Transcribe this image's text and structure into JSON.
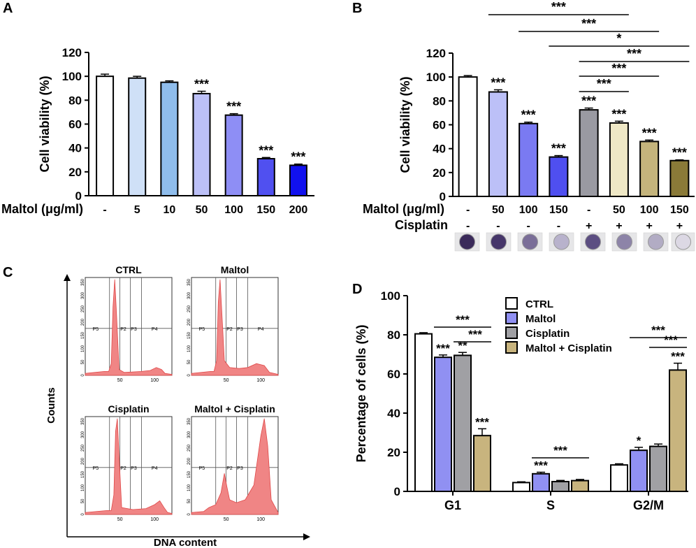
{
  "chart_data": [
    {
      "panel": "A",
      "type": "bar",
      "ylabel": "Cell viability (%)",
      "xlabel": "Maltol (μg/ml)",
      "ylim": [
        0,
        120
      ],
      "yticks": [
        "0",
        "20",
        "40",
        "60",
        "80",
        "100",
        "120"
      ],
      "categories": [
        "-",
        "5",
        "10",
        "50",
        "100",
        "150",
        "200"
      ],
      "values": [
        100,
        98.5,
        95,
        85.5,
        67.5,
        31,
        25.5
      ],
      "errors": [
        1.8,
        1.5,
        1.2,
        2,
        1.2,
        1,
        1
      ],
      "colors": [
        "#ffffff",
        "#cfe0f7",
        "#8fbdec",
        "#bcc0f7",
        "#8e8ef5",
        "#5050f0",
        "#1111ee"
      ],
      "sig": [
        "",
        "",
        "",
        "***",
        "***",
        "***",
        "***"
      ]
    },
    {
      "panel": "B",
      "type": "bar",
      "ylabel": "Cell viability (%)",
      "xlabel": "Maltol (μg/ml)",
      "row2_label": "Cisplatin",
      "ylim": [
        0,
        120
      ],
      "yticks": [
        "0",
        "20",
        "40",
        "60",
        "80",
        "100",
        "120"
      ],
      "categories": [
        "-",
        "50",
        "100",
        "150",
        "-",
        "50",
        "100",
        "150"
      ],
      "cisplatin": [
        "-",
        "-",
        "-",
        "-",
        "+",
        "+",
        "+",
        "+"
      ],
      "values": [
        100,
        87.5,
        61,
        33,
        72.5,
        61.5,
        46,
        30
      ],
      "errors": [
        1.2,
        1.8,
        1.2,
        1.2,
        1.5,
        1.5,
        1.2,
        0.6
      ],
      "colors": [
        "#ffffff",
        "#bcc0f7",
        "#7a7af2",
        "#4f4ff0",
        "#9a9aa2",
        "#efe8c6",
        "#c4b47c",
        "#8a7a38"
      ],
      "sig": [
        "",
        "***",
        "***",
        "***",
        "***",
        "***",
        "***",
        "***"
      ],
      "brackets": [
        {
          "from": 1,
          "to": 5,
          "label": "***"
        },
        {
          "from": 2,
          "to": 6,
          "label": "***"
        },
        {
          "from": 3,
          "to": 7,
          "label": "*"
        },
        {
          "from": 4,
          "to": 7,
          "label": "***"
        },
        {
          "from": 4,
          "to": 6,
          "label": "***"
        },
        {
          "from": 4,
          "to": 5,
          "label": "***"
        }
      ]
    },
    {
      "panel": "C",
      "type": "histogram",
      "xlabel": "DNA content",
      "ylabel": "Counts",
      "y_ticks": [
        "0",
        "50",
        "100",
        "150",
        "200",
        "250",
        "300",
        "350"
      ],
      "x_ticks": [
        "50",
        "100"
      ],
      "gate_labels": [
        "P5",
        "P2",
        "P3",
        "P4"
      ],
      "subpanels": [
        {
          "title": "CTRL"
        },
        {
          "title": "Maltol"
        },
        {
          "title": "Cisplatin"
        },
        {
          "title": "Maltol + Cisplatin"
        }
      ]
    },
    {
      "panel": "D",
      "type": "bar",
      "ylabel": "Percentage of cells (%)",
      "ylim": [
        0,
        100
      ],
      "yticks": [
        "0",
        "20",
        "40",
        "60",
        "80",
        "100"
      ],
      "categories": [
        "G1",
        "S",
        "G2/M"
      ],
      "series": [
        {
          "name": "CTRL",
          "color": "#ffffff",
          "values": [
            80.5,
            4.5,
            13.5
          ],
          "errors": [
            0.6,
            0.4,
            0.6
          ],
          "sig": [
            "",
            "",
            ""
          ]
        },
        {
          "name": "Maltol",
          "color": "#9090f2",
          "values": [
            68.5,
            9,
            21
          ],
          "errors": [
            1.2,
            0.8,
            1.5
          ],
          "sig": [
            "***",
            "***",
            "*"
          ]
        },
        {
          "name": "Cisplatin",
          "color": "#a0a0a4",
          "values": [
            69.5,
            5,
            23
          ],
          "errors": [
            1.5,
            0.6,
            1.2
          ],
          "sig": [
            "**",
            "",
            ""
          ]
        },
        {
          "name": "Maltol + Cisplatin",
          "color": "#c8b47e",
          "values": [
            28.5,
            5.5,
            62
          ],
          "errors": [
            3.5,
            0.6,
            3.5
          ],
          "sig": [
            "***",
            "",
            "***"
          ]
        }
      ],
      "brackets": [
        {
          "group": 0,
          "from": 1,
          "to": 3,
          "label": "***"
        },
        {
          "group": 0,
          "from": 2,
          "to": 3,
          "label": "***"
        },
        {
          "group": 1,
          "from": 1,
          "to": 3,
          "label": "***"
        },
        {
          "group": 2,
          "from": 1,
          "to": 3,
          "label": "***"
        },
        {
          "group": 2,
          "from": 2,
          "to": 3,
          "label": "***"
        }
      ]
    }
  ],
  "panel_letters": [
    "A",
    "B",
    "C",
    "D"
  ]
}
